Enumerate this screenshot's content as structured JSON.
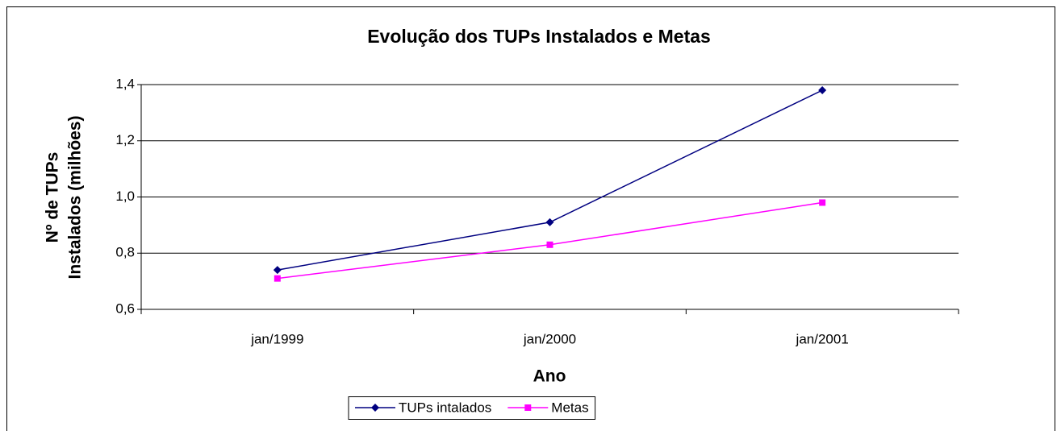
{
  "chart_data": {
    "type": "line",
    "title": "Evolução dos TUPs Instalados e Metas",
    "y_label": [
      "Nº de TUPs",
      "Instalados (milhões)"
    ],
    "x_label": "Ano",
    "categories": [
      "jan/1999",
      "jan/2000",
      "jan/2001"
    ],
    "series": [
      {
        "name": "TUPs intalados",
        "color": "#000080",
        "marker": "diamond",
        "values": [
          0.74,
          0.91,
          1.38
        ]
      },
      {
        "name": "Metas",
        "color": "#ff00ff",
        "marker": "square",
        "values": [
          0.71,
          0.83,
          0.98
        ]
      }
    ],
    "ylim": [
      0.6,
      1.4
    ],
    "yticks": [
      {
        "value": 0.6,
        "label": "0,6"
      },
      {
        "value": 0.8,
        "label": "0,8"
      },
      {
        "value": 1.0,
        "label": "1,0"
      },
      {
        "value": 1.2,
        "label": "1,2"
      },
      {
        "value": 1.4,
        "label": "1,4"
      }
    ],
    "grid": true,
    "legend": "bottom"
  }
}
